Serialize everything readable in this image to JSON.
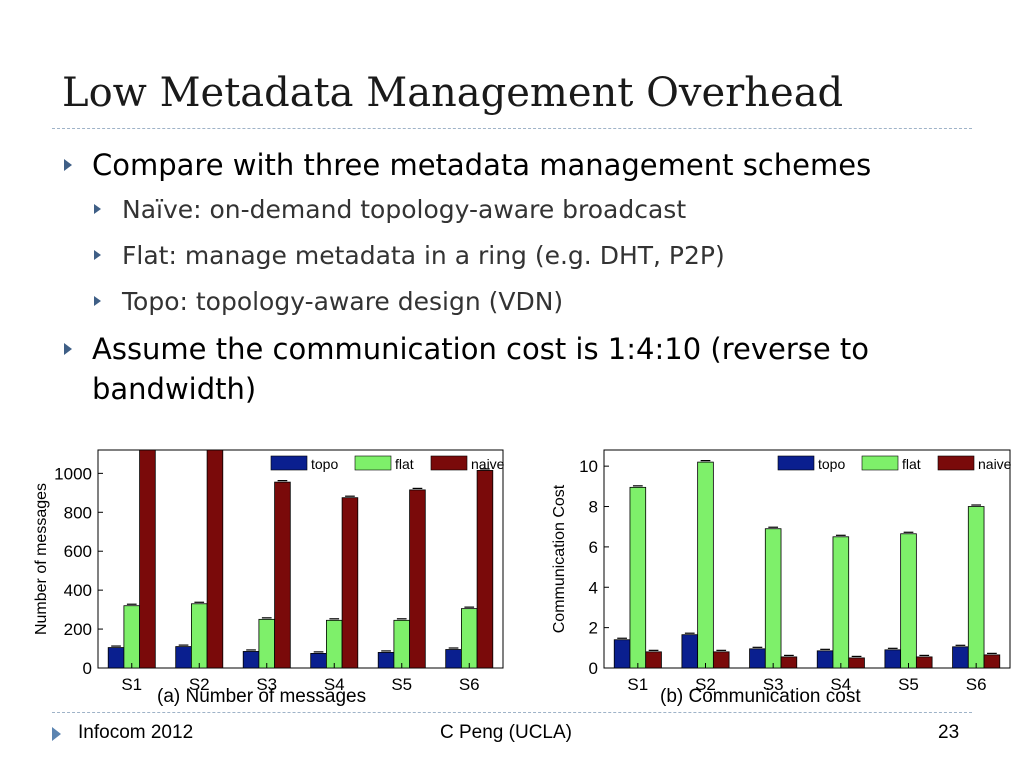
{
  "slide": {
    "title": "Low Metadata Management Overhead",
    "bullets": [
      {
        "text": "Compare with three metadata management schemes",
        "sub": [
          "Naïve: on-demand topology-aware broadcast",
          "Flat: manage metadata in a ring (e.g. DHT, P2P)",
          "Topo: topology-aware design (VDN)"
        ]
      },
      {
        "text": "Assume the communication cost is 1:4:10 (reverse to bandwidth)",
        "sub": []
      }
    ],
    "captions": [
      "(a) Number of messages",
      "(b) Communication cost"
    ]
  },
  "footer": {
    "left": "Infocom 2012",
    "center": "C Peng (UCLA)",
    "page": "23"
  },
  "colors": {
    "topo": "#0a1f8f",
    "flat": "#7ef06a",
    "naive": "#7a0a0a",
    "accent": "#3f5f86",
    "rule": "#9fb3c8"
  },
  "chart_data": [
    {
      "type": "bar",
      "categories": [
        "S1",
        "S2",
        "S3",
        "S4",
        "S5",
        "S6"
      ],
      "series": [
        {
          "name": "topo",
          "values": [
            105,
            110,
            85,
            75,
            80,
            95
          ]
        },
        {
          "name": "flat",
          "values": [
            320,
            330,
            250,
            245,
            245,
            305
          ]
        },
        {
          "name": "naive",
          "values": [
            1140,
            1140,
            955,
            875,
            915,
            1015
          ]
        }
      ],
      "ylabel": "Number of messages",
      "yticks": [
        0,
        200,
        400,
        600,
        800,
        1000
      ],
      "ylim": [
        0,
        1120
      ],
      "legend": "top-right",
      "grid": false
    },
    {
      "type": "bar",
      "categories": [
        "S1",
        "S2",
        "S3",
        "S4",
        "S5",
        "S6"
      ],
      "series": [
        {
          "name": "topo",
          "values": [
            1.4,
            1.65,
            0.95,
            0.85,
            0.9,
            1.05
          ]
        },
        {
          "name": "flat",
          "values": [
            8.95,
            10.2,
            6.9,
            6.5,
            6.65,
            8.0
          ]
        },
        {
          "name": "naive",
          "values": [
            0.8,
            0.8,
            0.55,
            0.5,
            0.55,
            0.65
          ]
        }
      ],
      "ylabel": "Communication Cost",
      "yticks": [
        0,
        2,
        4,
        6,
        8,
        10
      ],
      "ylim": [
        0,
        10.8
      ],
      "legend": "top-right",
      "grid": false
    }
  ]
}
